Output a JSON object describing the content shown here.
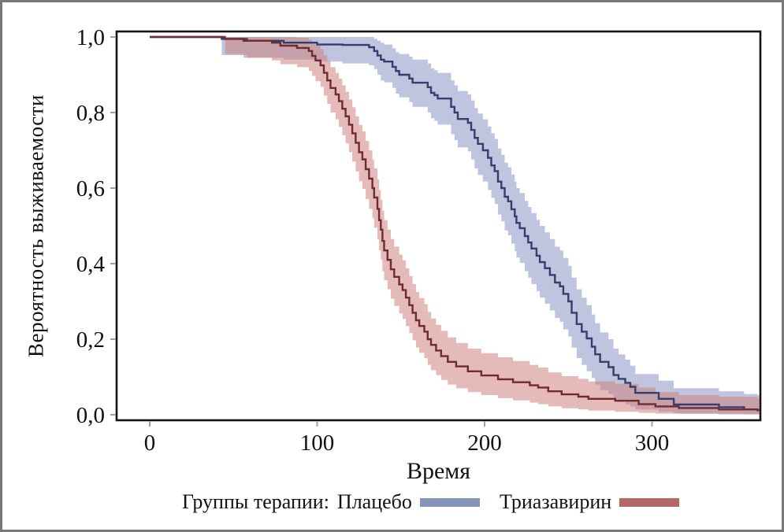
{
  "figure": {
    "background": "#ffffff",
    "border_color": "#787878",
    "frame_color": "#141414",
    "tick_color": "#a0a0a0",
    "text_color": "#111111"
  },
  "chart_data": {
    "type": "line",
    "subtype": "kaplan-meier-step-with-confidence-bands",
    "title": "",
    "xlabel": "Время",
    "ylabel": "Вероятность выживаемости",
    "xlim": [
      -20,
      365
    ],
    "ylim": [
      -0.015,
      1.015
    ],
    "x_end": 364,
    "grid": false,
    "legend_position": "bottom",
    "x_ticks": [
      {
        "v": 0,
        "label": "0"
      },
      {
        "v": 100,
        "label": "100"
      },
      {
        "v": 200,
        "label": "200"
      },
      {
        "v": 300,
        "label": "300"
      }
    ],
    "y_ticks": [
      {
        "v": 1.0,
        "label": "1,0"
      },
      {
        "v": 0.8,
        "label": "0,8"
      },
      {
        "v": 0.6,
        "label": "0,6"
      },
      {
        "v": 0.4,
        "label": "0,4"
      },
      {
        "v": 0.2,
        "label": "0,2"
      },
      {
        "v": 0.0,
        "label": "0,0"
      }
    ],
    "point_format": [
      "time",
      "survival",
      "ci_lower",
      "ci_upper"
    ],
    "series": [
      {
        "name": "Плацебо",
        "line_color": "#333f6e",
        "band_color": "#8b96c4",
        "band_opacity": 0.55,
        "swatch_color": "#8593bd",
        "points": [
          [
            0,
            1.0,
            1.0,
            1.0
          ],
          [
            43,
            0.995,
            0.952,
            1.0
          ],
          [
            58,
            0.99,
            0.945,
            1.0
          ],
          [
            80,
            0.985,
            0.94,
            1.0
          ],
          [
            100,
            0.98,
            0.935,
            1.0
          ],
          [
            115,
            0.979,
            0.93,
            1.0
          ],
          [
            131,
            0.973,
            0.925,
            1.0
          ],
          [
            134,
            0.963,
            0.915,
            0.995
          ],
          [
            136,
            0.951,
            0.9,
            0.99
          ],
          [
            138,
            0.94,
            0.885,
            0.985
          ],
          [
            140,
            0.935,
            0.88,
            0.98
          ],
          [
            145,
            0.921,
            0.865,
            0.97
          ],
          [
            147,
            0.91,
            0.85,
            0.96
          ],
          [
            149,
            0.9,
            0.84,
            0.955
          ],
          [
            155,
            0.89,
            0.828,
            0.948
          ],
          [
            157,
            0.879,
            0.815,
            0.94
          ],
          [
            166,
            0.867,
            0.8,
            0.93
          ],
          [
            168,
            0.852,
            0.785,
            0.917
          ],
          [
            170,
            0.846,
            0.778,
            0.912
          ],
          [
            172,
            0.837,
            0.768,
            0.905
          ],
          [
            180,
            0.815,
            0.743,
            0.885
          ],
          [
            182,
            0.8,
            0.727,
            0.872
          ],
          [
            184,
            0.783,
            0.708,
            0.857
          ],
          [
            190,
            0.773,
            0.697,
            0.848
          ],
          [
            192,
            0.754,
            0.676,
            0.832
          ],
          [
            194,
            0.733,
            0.652,
            0.812
          ],
          [
            196,
            0.717,
            0.635,
            0.797
          ],
          [
            199,
            0.7,
            0.617,
            0.782
          ],
          [
            202,
            0.68,
            0.595,
            0.763
          ],
          [
            204,
            0.66,
            0.574,
            0.745
          ],
          [
            206,
            0.645,
            0.558,
            0.73
          ],
          [
            208,
            0.617,
            0.53,
            0.705
          ],
          [
            210,
            0.6,
            0.512,
            0.688
          ],
          [
            212,
            0.577,
            0.488,
            0.667
          ],
          [
            214,
            0.565,
            0.475,
            0.655
          ],
          [
            216,
            0.544,
            0.453,
            0.636
          ],
          [
            218,
            0.525,
            0.433,
            0.617
          ],
          [
            219,
            0.508,
            0.416,
            0.6
          ],
          [
            221,
            0.494,
            0.402,
            0.587
          ],
          [
            224,
            0.473,
            0.38,
            0.566
          ],
          [
            226,
            0.456,
            0.363,
            0.55
          ],
          [
            228,
            0.44,
            0.346,
            0.534
          ],
          [
            231,
            0.421,
            0.327,
            0.516
          ],
          [
            233,
            0.404,
            0.31,
            0.5
          ],
          [
            236,
            0.388,
            0.294,
            0.483
          ],
          [
            239,
            0.37,
            0.276,
            0.465
          ],
          [
            242,
            0.35,
            0.256,
            0.445
          ],
          [
            245,
            0.34,
            0.246,
            0.435
          ],
          [
            247,
            0.32,
            0.226,
            0.415
          ],
          [
            250,
            0.3,
            0.207,
            0.394
          ],
          [
            252,
            0.27,
            0.178,
            0.363
          ],
          [
            255,
            0.24,
            0.15,
            0.332
          ],
          [
            258,
            0.22,
            0.132,
            0.31
          ],
          [
            261,
            0.202,
            0.115,
            0.29
          ],
          [
            264,
            0.18,
            0.097,
            0.265
          ],
          [
            266,
            0.16,
            0.08,
            0.242
          ],
          [
            269,
            0.14,
            0.065,
            0.218
          ],
          [
            274,
            0.126,
            0.055,
            0.2
          ],
          [
            277,
            0.105,
            0.04,
            0.175
          ],
          [
            280,
            0.095,
            0.034,
            0.16
          ],
          [
            284,
            0.0845,
            0.028,
            0.146
          ],
          [
            287,
            0.074,
            0.022,
            0.13
          ],
          [
            290,
            0.058,
            0.014,
            0.108
          ],
          [
            304,
            0.042,
            0.008,
            0.09
          ],
          [
            313,
            0.027,
            0.004,
            0.07
          ],
          [
            340,
            0.02,
            0.002,
            0.062
          ],
          [
            355,
            0.014,
            0.001,
            0.055
          ],
          [
            363,
            0.012,
            0.001,
            0.052
          ]
        ]
      },
      {
        "name": "Триазавирин",
        "line_color": "#702b31",
        "band_color": "#ce837d",
        "band_opacity": 0.55,
        "swatch_color": "#b56767",
        "points": [
          [
            0,
            1.0,
            1.0,
            1.0
          ],
          [
            45,
            0.995,
            0.955,
            1.0
          ],
          [
            56,
            0.99,
            0.945,
            1.0
          ],
          [
            73,
            0.985,
            0.938,
            1.0
          ],
          [
            78,
            0.977,
            0.928,
            1.0
          ],
          [
            88,
            0.971,
            0.92,
            0.998
          ],
          [
            95,
            0.963,
            0.91,
            0.993
          ],
          [
            97,
            0.95,
            0.897,
            0.985
          ],
          [
            99,
            0.938,
            0.883,
            0.977
          ],
          [
            102,
            0.925,
            0.868,
            0.968
          ],
          [
            104,
            0.905,
            0.845,
            0.952
          ],
          [
            106,
            0.885,
            0.823,
            0.936
          ],
          [
            108,
            0.865,
            0.8,
            0.92
          ],
          [
            111,
            0.848,
            0.782,
            0.905
          ],
          [
            113,
            0.83,
            0.762,
            0.89
          ],
          [
            115,
            0.81,
            0.74,
            0.872
          ],
          [
            117,
            0.79,
            0.718,
            0.855
          ],
          [
            119,
            0.768,
            0.695,
            0.835
          ],
          [
            121,
            0.745,
            0.67,
            0.814
          ],
          [
            123,
            0.72,
            0.644,
            0.79
          ],
          [
            125,
            0.695,
            0.618,
            0.767
          ],
          [
            127,
            0.676,
            0.598,
            0.75
          ],
          [
            129,
            0.65,
            0.571,
            0.725
          ],
          [
            131,
            0.625,
            0.545,
            0.7
          ],
          [
            133,
            0.6,
            0.52,
            0.676
          ],
          [
            134,
            0.575,
            0.495,
            0.652
          ],
          [
            136,
            0.545,
            0.465,
            0.623
          ],
          [
            137,
            0.515,
            0.435,
            0.594
          ],
          [
            138,
            0.49,
            0.41,
            0.569
          ],
          [
            139,
            0.46,
            0.38,
            0.54
          ],
          [
            140,
            0.435,
            0.356,
            0.515
          ],
          [
            142,
            0.41,
            0.332,
            0.49
          ],
          [
            144,
            0.385,
            0.307,
            0.465
          ],
          [
            146,
            0.365,
            0.288,
            0.445
          ],
          [
            149,
            0.345,
            0.268,
            0.424
          ],
          [
            151,
            0.33,
            0.254,
            0.409
          ],
          [
            153,
            0.31,
            0.235,
            0.388
          ],
          [
            155,
            0.29,
            0.216,
            0.367
          ],
          [
            157,
            0.27,
            0.197,
            0.346
          ],
          [
            159,
            0.25,
            0.178,
            0.325
          ],
          [
            161,
            0.235,
            0.164,
            0.309
          ],
          [
            164,
            0.22,
            0.15,
            0.293
          ],
          [
            166,
            0.2,
            0.132,
            0.272
          ],
          [
            168,
            0.185,
            0.118,
            0.255
          ],
          [
            171,
            0.17,
            0.105,
            0.238
          ],
          [
            174,
            0.155,
            0.092,
            0.222
          ],
          [
            178,
            0.14,
            0.08,
            0.205
          ],
          [
            183,
            0.128,
            0.07,
            0.19
          ],
          [
            190,
            0.115,
            0.06,
            0.175
          ],
          [
            198,
            0.104,
            0.052,
            0.163
          ],
          [
            208,
            0.094,
            0.044,
            0.152
          ],
          [
            217,
            0.086,
            0.038,
            0.142
          ],
          [
            227,
            0.078,
            0.032,
            0.132
          ],
          [
            232,
            0.072,
            0.028,
            0.125
          ],
          [
            238,
            0.062,
            0.022,
            0.112
          ],
          [
            246,
            0.054,
            0.017,
            0.102
          ],
          [
            256,
            0.048,
            0.014,
            0.095
          ],
          [
            262,
            0.042,
            0.011,
            0.088
          ],
          [
            278,
            0.037,
            0.008,
            0.082
          ],
          [
            292,
            0.028,
            0.005,
            0.072
          ],
          [
            302,
            0.022,
            0.003,
            0.06
          ],
          [
            316,
            0.018,
            0.002,
            0.052
          ],
          [
            340,
            0.014,
            0.001,
            0.048
          ],
          [
            363,
            0.012,
            0.001,
            0.045
          ]
        ]
      }
    ]
  },
  "legend": {
    "prefix": "Группы терапии:",
    "items": [
      {
        "label": "Плацебо",
        "swatch_color": "#8593bd"
      },
      {
        "label": "Триазавирин",
        "swatch_color": "#b56767"
      }
    ]
  }
}
